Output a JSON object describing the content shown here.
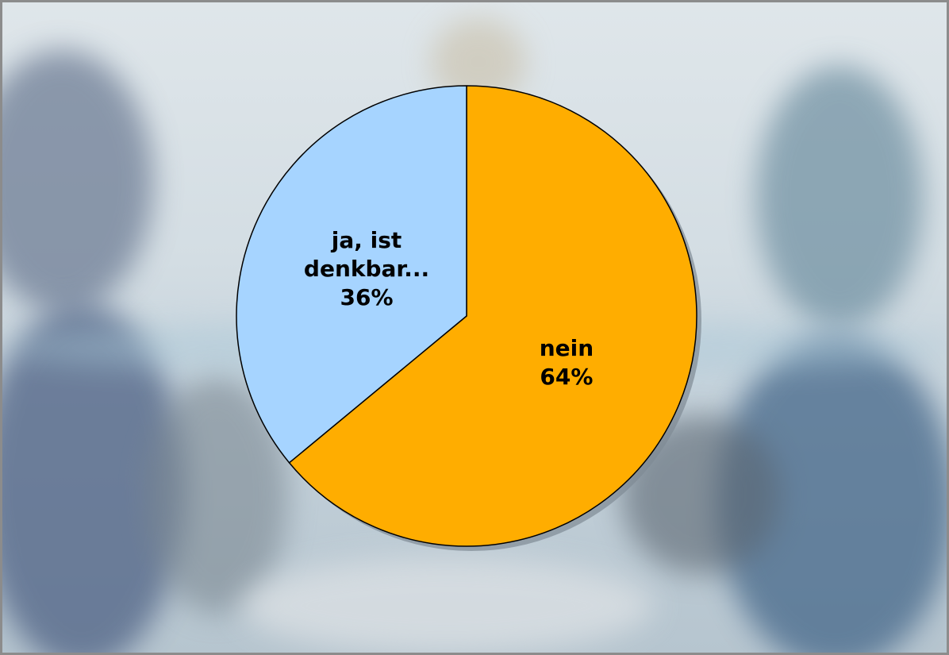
{
  "chart_data": {
    "type": "pie",
    "categories": [
      "nein",
      "ja, ist denkbar..."
    ],
    "values": [
      64,
      36
    ],
    "value_labels": [
      "64%",
      "36%"
    ],
    "colors": [
      "#ffad00",
      "#a6d4ff"
    ]
  }
}
